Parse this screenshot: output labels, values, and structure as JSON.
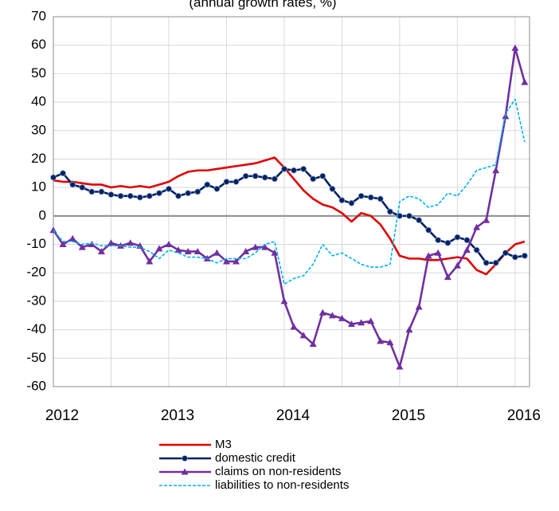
{
  "chart_data": {
    "type": "line",
    "subtitle": "(annual growth rates, %)",
    "x": [
      2012,
      2012.083,
      2012.167,
      2012.25,
      2012.333,
      2012.417,
      2012.5,
      2012.583,
      2012.667,
      2012.75,
      2012.833,
      2012.917,
      2013,
      2013.083,
      2013.167,
      2013.25,
      2013.333,
      2013.417,
      2013.5,
      2013.583,
      2013.667,
      2013.75,
      2013.833,
      2013.917,
      2014,
      2014.083,
      2014.167,
      2014.25,
      2014.333,
      2014.417,
      2014.5,
      2014.583,
      2014.667,
      2014.75,
      2014.833,
      2014.917,
      2015,
      2015.083,
      2015.167,
      2015.25,
      2015.333,
      2015.417,
      2015.5,
      2015.583,
      2015.667,
      2015.75,
      2015.833,
      2015.917,
      2016,
      2016.083
    ],
    "series": [
      {
        "name": "M3",
        "color": "#e00000",
        "marker": "none",
        "dash": false,
        "values": [
          12.5,
          12,
          12,
          11.5,
          11,
          11,
          10,
          10.5,
          10,
          10.5,
          10,
          11,
          12,
          14,
          15.5,
          16,
          16,
          16.5,
          17,
          17.5,
          18,
          18.5,
          19.5,
          20.5,
          17,
          13,
          9,
          6,
          4,
          3,
          1,
          -2,
          1,
          0,
          -3,
          -8,
          -14,
          -15,
          -15,
          -15.5,
          -15.5,
          -15,
          -14.5,
          -15,
          -19,
          -20.5,
          -17,
          -13,
          -10,
          -9
        ]
      },
      {
        "name": "domestic credit",
        "color": "#002060",
        "marker": "circle",
        "dash": false,
        "values": [
          13.5,
          15,
          11,
          10,
          8.5,
          8.5,
          7.5,
          7,
          7,
          6.5,
          7,
          8,
          9.5,
          7,
          8,
          8.5,
          11,
          9.5,
          12,
          12,
          14,
          14,
          13.5,
          13,
          16.5,
          16,
          16.5,
          13,
          14,
          9.5,
          5.5,
          4.5,
          7,
          6.5,
          6,
          1.5,
          0,
          0,
          -1.5,
          -5,
          -8.5,
          -9.5,
          -7.5,
          -8.5,
          -12,
          -16.5,
          -16.5,
          -13,
          -14.5,
          -14
        ]
      },
      {
        "name": "claims on non-residents",
        "color": "#7030a0",
        "marker": "triangle",
        "dash": false,
        "values": [
          -5,
          -10,
          -8,
          -11,
          -10,
          -12.5,
          -9.5,
          -10.5,
          -9.5,
          -10.5,
          -16,
          -11.5,
          -10,
          -12,
          -12.5,
          -12.5,
          -15,
          -13,
          -16,
          -16,
          -12.5,
          -11,
          -11,
          -13,
          -30,
          -39,
          -42,
          -45,
          -34,
          -35,
          -36,
          -38,
          -37.5,
          -37,
          -44,
          -44.5,
          -53,
          -40,
          -32,
          -14,
          -13,
          -21.5,
          -17.5,
          -12,
          -4,
          -1.5,
          16,
          35,
          59,
          47
        ]
      },
      {
        "name": "liabilities to non-residents",
        "color": "#00b0f0",
        "marker": "none",
        "dash": true,
        "values": [
          -5,
          -9,
          -9,
          -10,
          -9.5,
          -10.5,
          -10.5,
          -10.5,
          -11,
          -11,
          -12.5,
          -15,
          -12,
          -13,
          -14.5,
          -14.5,
          -15,
          -16.5,
          -15,
          -15,
          -15,
          -13,
          -10,
          -9,
          -24,
          -22,
          -21,
          -17,
          -10,
          -14,
          -13,
          -15,
          -17,
          -18,
          -18,
          -17,
          5,
          7,
          6,
          3,
          4,
          8,
          7,
          11,
          16,
          17,
          18,
          36,
          41,
          26
        ]
      }
    ],
    "xlim": [
      2012,
      2016.125
    ],
    "xticks": [
      2012,
      2013,
      2014,
      2015,
      2016
    ],
    "ylim": [
      -60,
      70
    ],
    "yticks": [
      -60,
      -50,
      -40,
      -30,
      -20,
      -10,
      0,
      10,
      20,
      30,
      40,
      50,
      60,
      70
    ],
    "grid": true,
    "legend": "bottom"
  }
}
